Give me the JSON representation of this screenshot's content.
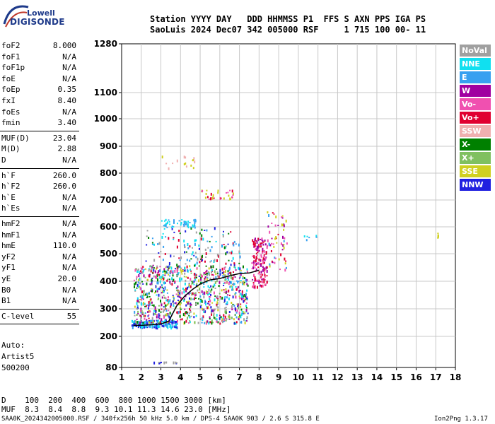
{
  "logo": {
    "line1": "Lowell",
    "line2": "DIGISONDE"
  },
  "header": {
    "line1": "Station YYYY DAY   DDD HHMMSS P1  FFS S AXN PPS IGA PS",
    "line2": "SaoLuis 2024 Dec07 342 005000 RSF     1 715 100 00- 11"
  },
  "scalings": {
    "group1": [
      {
        "label": "foF2",
        "value": "8.000"
      },
      {
        "label": "foF1",
        "value": "N/A"
      },
      {
        "label": "foF1p",
        "value": "N/A"
      },
      {
        "label": "foE",
        "value": "N/A"
      },
      {
        "label": "foEp",
        "value": "0.35"
      },
      {
        "label": "fxI",
        "value": "8.40"
      },
      {
        "label": "foEs",
        "value": "N/A"
      },
      {
        "label": "fmin",
        "value": "3.40"
      }
    ],
    "group2": [
      {
        "label": "MUF(D)",
        "value": "23.04"
      },
      {
        "label": "M(D)",
        "value": "2.88"
      },
      {
        "label": "D",
        "value": "N/A"
      }
    ],
    "group3": [
      {
        "label": "h`F",
        "value": "260.0"
      },
      {
        "label": "h`F2",
        "value": "260.0"
      },
      {
        "label": "h`E",
        "value": "N/A"
      },
      {
        "label": "h`Es",
        "value": "N/A"
      }
    ],
    "group4": [
      {
        "label": "hmF2",
        "value": "N/A"
      },
      {
        "label": "hmF1",
        "value": "N/A"
      },
      {
        "label": "hmE",
        "value": "110.0"
      },
      {
        "label": "yF2",
        "value": "N/A"
      },
      {
        "label": "yF1",
        "value": "N/A"
      },
      {
        "label": "yE",
        "value": "20.0"
      },
      {
        "label": "B0",
        "value": "N/A"
      },
      {
        "label": "B1",
        "value": "N/A"
      }
    ],
    "group5": [
      {
        "label": "C-level",
        "value": "55"
      }
    ]
  },
  "autoscale": {
    "line1": "Auto:",
    "line2": "Artist5",
    "line3": "500200"
  },
  "legend": [
    {
      "label": "NoVal",
      "color": "#a0a0a0"
    },
    {
      "label": "NNE",
      "color": "#10e0f0"
    },
    {
      "label": "E",
      "color": "#38a0f0"
    },
    {
      "label": "W",
      "color": "#a000a0"
    },
    {
      "label": "Vo-",
      "color": "#f050b0"
    },
    {
      "label": "Vo+",
      "color": "#e00030"
    },
    {
      "label": "SSW",
      "color": "#f0b0b0"
    },
    {
      "label": "X-",
      "color": "#008000"
    },
    {
      "label": "X+",
      "color": "#80c060"
    },
    {
      "label": "SSE",
      "color": "#d0d020"
    },
    {
      "label": "NNW",
      "color": "#2020e0"
    }
  ],
  "footer": {
    "d_row": "D    100  200  400  600  800 1000 1500 3000 [km]",
    "muf_row": "MUF  8.3  8.4  8.8  9.3 10.1 11.3 14.6 23.0 [MHz]",
    "file_info": "SAA0K_2024342005000.RSF / 340fx256h 50 kHz 5.0 km / DPS-4 SAA0K 903 / 2.6 S 315.8 E",
    "version": "Ion2Png 1.3.17"
  },
  "chart_data": {
    "type": "scatter",
    "title": "",
    "xlabel": "",
    "ylabel": "",
    "xlim": [
      1,
      18
    ],
    "ylim": [
      80,
      1280
    ],
    "x_ticks": [
      1,
      2,
      3,
      4,
      5,
      6,
      7,
      8,
      9,
      10,
      11,
      12,
      13,
      14,
      15,
      16,
      17,
      18
    ],
    "y_ticks": [
      80,
      200,
      300,
      400,
      500,
      600,
      700,
      800,
      900,
      1000,
      1100,
      1280
    ],
    "grid": true,
    "legend_placement": "right",
    "trace": {
      "name": "",
      "color": "#000000",
      "x": [
        1.6,
        2.0,
        2.5,
        3.0,
        3.4,
        3.8,
        4.2,
        4.6,
        5.0,
        5.5,
        6.0,
        6.5,
        7.0,
        7.5,
        8.0
      ],
      "y": [
        240,
        240,
        242,
        245,
        255,
        310,
        345,
        370,
        390,
        405,
        410,
        420,
        428,
        430,
        440
      ]
    },
    "clusters": [
      {
        "name": "main-low",
        "x": [
          1.5,
          3.8
        ],
        "y": [
          235,
          260
        ],
        "colors": [
          "#2020e0",
          "#10e0f0",
          "#38a0f0"
        ],
        "n": 160
      },
      {
        "name": "diffuse-F",
        "x": [
          1.6,
          7.4
        ],
        "y": [
          250,
          460
        ],
        "colors": [
          "#10e0f0",
          "#38a0f0",
          "#008000",
          "#80c060",
          "#d0d020",
          "#a000a0",
          "#2020e0",
          "#e00030",
          "#a0a0a0",
          "#f050b0"
        ],
        "n": 900
      },
      {
        "name": "upper-F",
        "x": [
          2.2,
          7.0
        ],
        "y": [
          400,
          600
        ],
        "colors": [
          "#10e0f0",
          "#38a0f0",
          "#e00030",
          "#a0a0a0",
          "#008000",
          "#2020e0"
        ],
        "n": 180
      },
      {
        "name": "cusp",
        "x": [
          7.6,
          8.4
        ],
        "y": [
          380,
          560
        ],
        "colors": [
          "#e00030",
          "#f050b0",
          "#a000a0"
        ],
        "n": 150
      },
      {
        "name": "spread-high",
        "x": [
          8.3,
          9.4
        ],
        "y": [
          440,
          660
        ],
        "colors": [
          "#d0d020",
          "#f050b0",
          "#a000a0",
          "#e00030",
          "#38a0f0"
        ],
        "n": 60
      },
      {
        "name": "second-hop",
        "x": [
          3.0,
          4.8
        ],
        "y": [
          600,
          630
        ],
        "colors": [
          "#38a0f0",
          "#10e0f0"
        ],
        "n": 50
      },
      {
        "name": "third-hop",
        "x": [
          5.0,
          6.7
        ],
        "y": [
          705,
          740
        ],
        "colors": [
          "#d0d020",
          "#f050b0",
          "#e00030"
        ],
        "n": 30
      },
      {
        "name": "fourth-hop",
        "x": [
          3.0,
          4.7
        ],
        "y": [
          815,
          870
        ],
        "colors": [
          "#d0d020",
          "#f0b0b0"
        ],
        "n": 16
      },
      {
        "name": "isolated-1",
        "x": [
          10.2,
          10.9
        ],
        "y": [
          545,
          575
        ],
        "colors": [
          "#38a0f0",
          "#10e0f0"
        ],
        "n": 6
      },
      {
        "name": "isolated-2",
        "x": [
          17.05,
          17.1
        ],
        "y": [
          560,
          580
        ],
        "colors": [
          "#d0d020"
        ],
        "n": 6
      },
      {
        "name": "bottom-row",
        "x": [
          2.6,
          3.8
        ],
        "y": [
          100,
          104
        ],
        "colors": [
          "#a0a0a0",
          "#2020e0"
        ],
        "n": 12
      }
    ]
  }
}
